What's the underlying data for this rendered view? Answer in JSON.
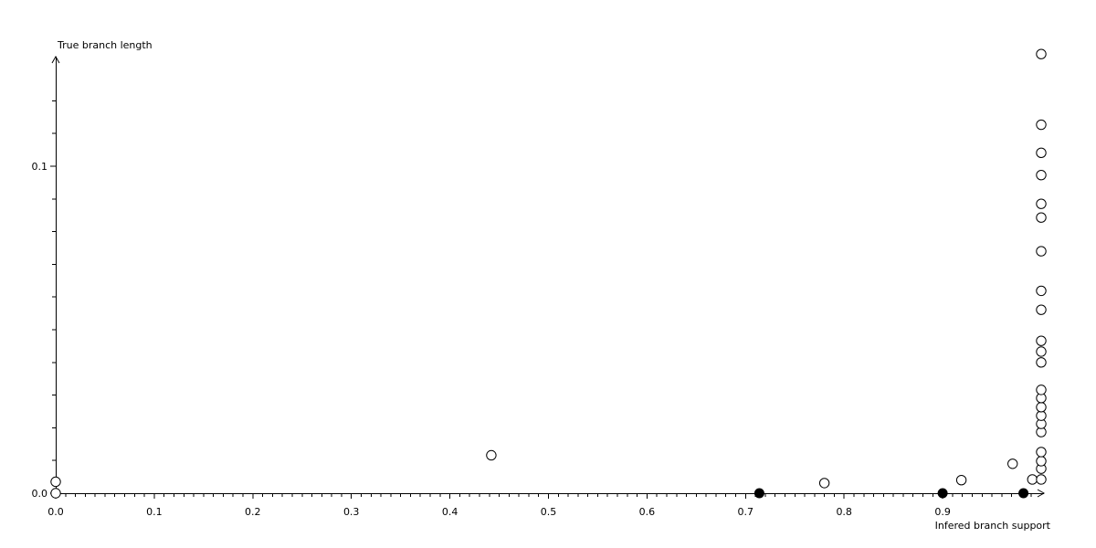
{
  "colors": {
    "background": "#ffffff",
    "foreground": "#000000"
  },
  "chart_data": {
    "type": "scatter",
    "title": "",
    "xlabel": "Infered branch support",
    "ylabel": "True branch length",
    "xlim": [
      0.0,
      1.0
    ],
    "ylim": [
      0.0,
      0.134
    ],
    "grid": false,
    "legend": null,
    "x_axis": {
      "major_ticks": [
        0.0,
        0.1,
        0.2,
        0.3,
        0.4,
        0.5,
        0.6,
        0.7,
        0.8,
        0.9
      ],
      "tick_labels": [
        "0.0",
        "0.1",
        "0.2",
        "0.3",
        "0.4",
        "0.5",
        "0.6",
        "0.7",
        "0.8",
        "0.9"
      ],
      "minor_tick_step": 0.01,
      "minor_tick_max": 0.99,
      "arrow": true
    },
    "y_axis": {
      "major_ticks": [
        0.0,
        0.1
      ],
      "tick_labels": [
        "0.0",
        "0.1"
      ],
      "minor_tick_step": 0.01,
      "minor_tick_max": 0.12,
      "arrow": true
    },
    "series": [
      {
        "name": "open-points",
        "marker": "open-circle",
        "stroke": "#000000",
        "fill": "#ffffff",
        "points": [
          [
            0.0,
            0.0
          ],
          [
            0.0,
            0.0035
          ],
          [
            0.442,
            0.0116
          ],
          [
            0.78,
            0.0031
          ],
          [
            0.919,
            0.004
          ],
          [
            0.971,
            0.009
          ],
          [
            0.991,
            0.0042
          ],
          [
            1.0,
            0.0042
          ],
          [
            1.0,
            0.0075
          ],
          [
            1.0,
            0.0098
          ],
          [
            1.0,
            0.0126
          ],
          [
            1.0,
            0.0187
          ],
          [
            1.0,
            0.0212
          ],
          [
            1.0,
            0.0237
          ],
          [
            1.0,
            0.0263
          ],
          [
            1.0,
            0.0291
          ],
          [
            1.0,
            0.0316
          ],
          [
            1.0,
            0.04
          ],
          [
            1.0,
            0.0433
          ],
          [
            1.0,
            0.0466
          ],
          [
            1.0,
            0.0561
          ],
          [
            1.0,
            0.0619
          ],
          [
            1.0,
            0.074
          ],
          [
            1.0,
            0.0843
          ],
          [
            1.0,
            0.0885
          ],
          [
            1.0,
            0.0973
          ],
          [
            1.0,
            0.1041
          ],
          [
            1.0,
            0.1127
          ],
          [
            1.0,
            0.1343
          ]
        ]
      },
      {
        "name": "filled-points",
        "marker": "filled-circle",
        "stroke": "#000000",
        "fill": "#000000",
        "points": [
          [
            0.714,
            0.0
          ],
          [
            0.9,
            0.0
          ],
          [
            0.982,
            0.0
          ]
        ]
      }
    ]
  }
}
